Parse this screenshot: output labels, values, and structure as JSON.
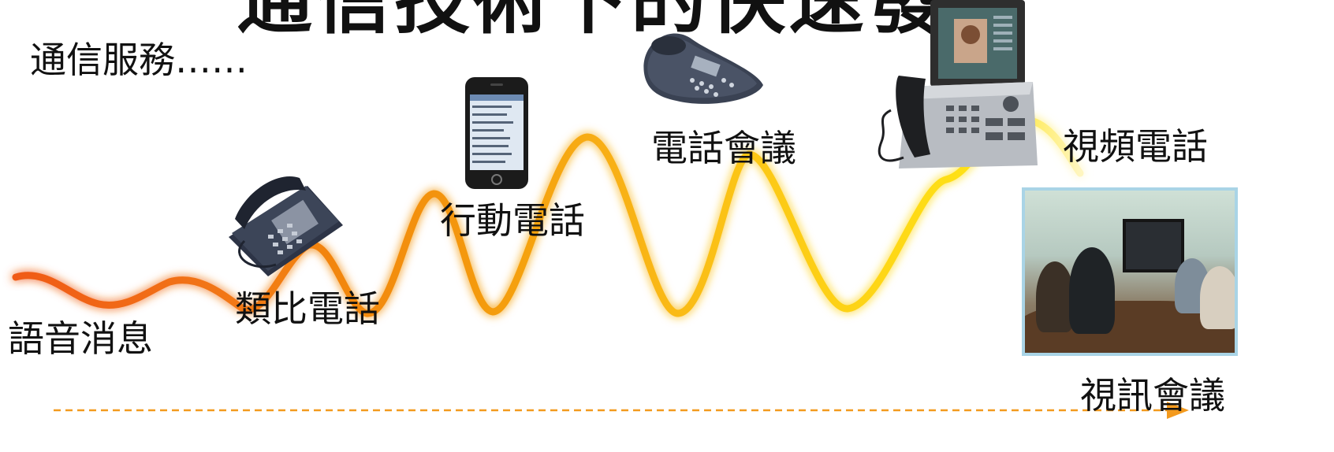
{
  "slide": {
    "title": "通信技術下的快速發展",
    "subtitle": "通信服務……",
    "labels": {
      "voice_message": "語音消息",
      "analog_phone": "類比電話",
      "mobile_phone": "行動電話",
      "conference_call": "電話會議",
      "video_phone": "視頻電話",
      "video_conference": "視訊會議"
    },
    "colors": {
      "wave_start": "#f05a14",
      "wave_mid": "#f5a011",
      "wave_end": "#ffe41a",
      "arrow": "#f39a1e"
    },
    "icons": [
      "desk-phone-icon",
      "smartphone-icon",
      "conference-phone-icon",
      "video-phone-icon",
      "video-conference-photo"
    ]
  }
}
